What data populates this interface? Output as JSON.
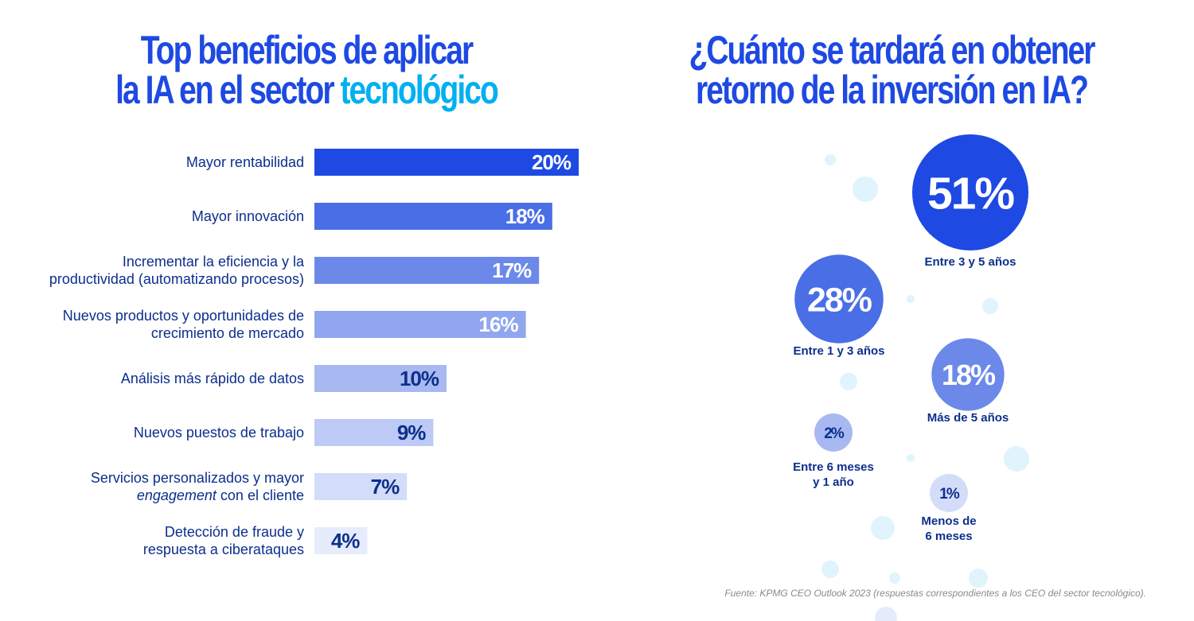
{
  "chart_data": [
    {
      "type": "bar",
      "orientation": "horizontal",
      "title": "Top beneficios de aplicar la IA en el sector tecnológico",
      "title_parts": [
        "Top beneficios de aplicar",
        "la IA en el sector",
        "tecnológico"
      ],
      "categories": [
        [
          "Mayor rentabilidad"
        ],
        [
          "Mayor innovación"
        ],
        [
          "Incrementar la eficiencia y la",
          "productividad (automatizando procesos)"
        ],
        [
          "Nuevos productos y oportunidades de",
          "crecimiento de mercado"
        ],
        [
          "Análisis más rápido de datos"
        ],
        [
          "Nuevos puestos de trabajo"
        ],
        [
          "Servicios personalizados y mayor",
          "engagement| con el cliente"
        ],
        [
          "Detección de fraude y",
          "respuesta a ciberataques"
        ]
      ],
      "values": [
        20,
        18,
        17,
        16,
        10,
        9,
        7,
        4
      ],
      "value_labels": [
        "20%",
        "18%",
        "17%",
        "16%",
        "10%",
        "9%",
        "7%",
        "4%"
      ],
      "bar_colors": [
        "#1e49e2",
        "#4a6ee6",
        "#6c89ea",
        "#90a6ef",
        "#a8b9f2",
        "#bccaf5",
        "#d3ddf9",
        "#e6ecfc"
      ],
      "label_colors": [
        "#ffffff",
        "#ffffff",
        "#ffffff",
        "#ffffff",
        "#0c2f8c",
        "#0c2f8c",
        "#0c2f8c",
        "#0c2f8c"
      ],
      "xlim": [
        0,
        20
      ],
      "grid": false,
      "xlabel": "",
      "ylabel": ""
    },
    {
      "type": "bubble",
      "title": "¿Cuánto se tardará en obtener retorno de la inversión en IA?",
      "title_parts": [
        "¿Cuánto se tardará en obtener",
        "retorno de la inversión en IA?"
      ],
      "categories": [
        [
          "Entre 3 y 5 años"
        ],
        [
          "Entre 1 y 3 años"
        ],
        [
          "Más de 5 años"
        ],
        [
          "Entre 6 meses",
          "y 1 año"
        ],
        [
          "Menos de",
          "6 meses"
        ]
      ],
      "values": [
        51,
        28,
        18,
        2,
        1
      ],
      "value_labels": [
        "51%",
        "28%",
        "18%",
        "2%",
        "1%"
      ],
      "bubble_colors": [
        "#1e49e2",
        "#4a6ee6",
        "#6c89ea",
        "#a8b9f2",
        "#d3ddf9"
      ],
      "text_colors": [
        "#ffffff",
        "#ffffff",
        "#ffffff",
        "#0c2f8c",
        "#0c2f8c"
      ]
    }
  ],
  "decor": {
    "bubble_color": "#dff4fd",
    "bubble_color_alt": "#e6ebfb"
  },
  "source": "Fuente: KPMG CEO Outlook 2023 (respuestas correspondientes a los CEO del sector tecnológico)."
}
